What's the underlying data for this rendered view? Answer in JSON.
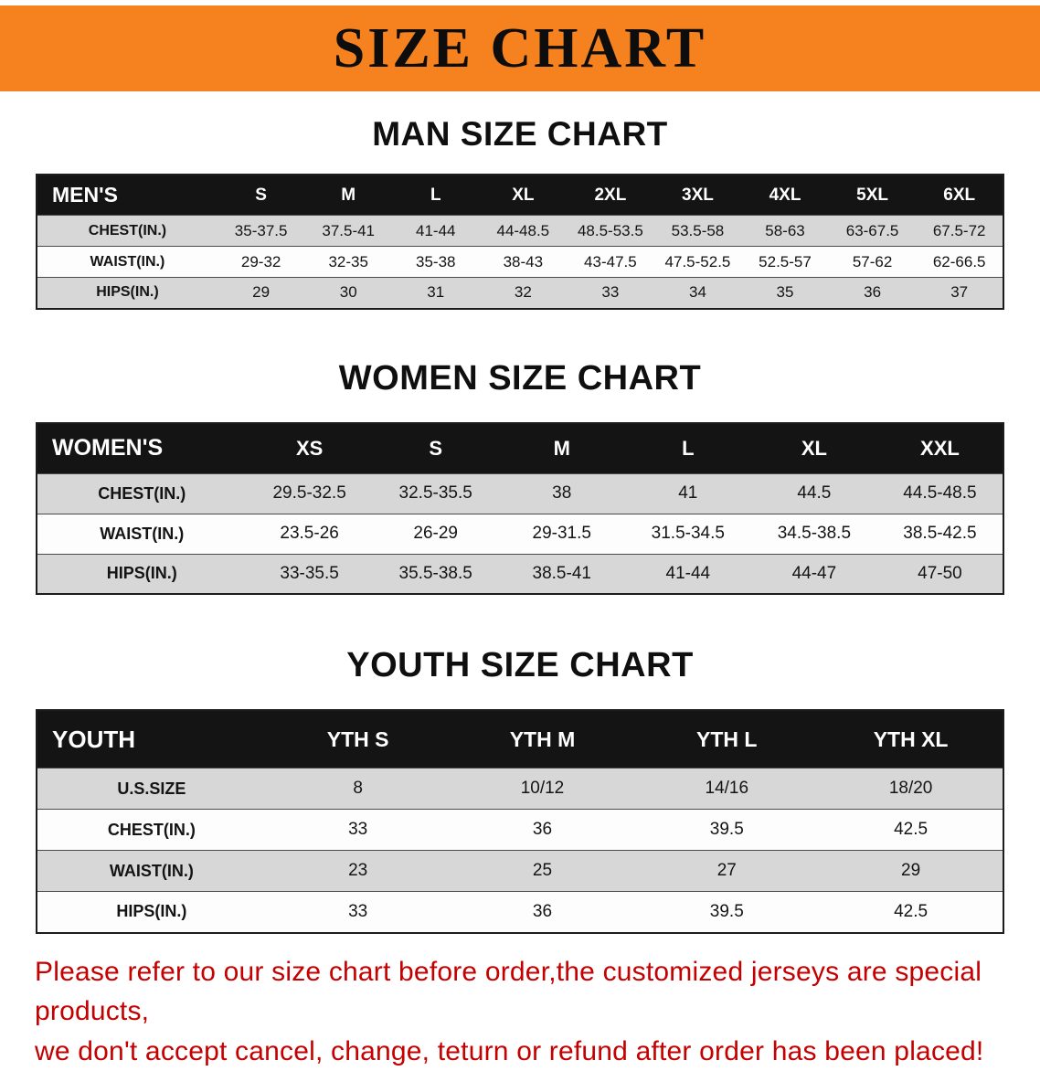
{
  "banner": {
    "title": "SIZE CHART",
    "bg": "#f5821f"
  },
  "sections": {
    "men": {
      "heading": "MAN SIZE CHART",
      "table": {
        "header": [
          "MEN'S",
          "S",
          "M",
          "L",
          "XL",
          "2XL",
          "3XL",
          "4XL",
          "5XL",
          "6XL"
        ],
        "rows": [
          [
            "CHEST(IN.)",
            "35-37.5",
            "37.5-41",
            "41-44",
            "44-48.5",
            "48.5-53.5",
            "53.5-58",
            "58-63",
            "63-67.5",
            "67.5-72"
          ],
          [
            "WAIST(IN.)",
            "29-32",
            "32-35",
            "35-38",
            "38-43",
            "43-47.5",
            "47.5-52.5",
            "52.5-57",
            "57-62",
            "62-66.5"
          ],
          [
            "HIPS(IN.)",
            "29",
            "30",
            "31",
            "32",
            "33",
            "34",
            "35",
            "36",
            "37"
          ]
        ]
      }
    },
    "women": {
      "heading": "WOMEN SIZE CHART",
      "table": {
        "header": [
          "WOMEN'S",
          "XS",
          "S",
          "M",
          "L",
          "XL",
          "XXL"
        ],
        "rows": [
          [
            "CHEST(IN.)",
            "29.5-32.5",
            "32.5-35.5",
            "38",
            "41",
            "44.5",
            "44.5-48.5"
          ],
          [
            "WAIST(IN.)",
            "23.5-26",
            "26-29",
            "29-31.5",
            "31.5-34.5",
            "34.5-38.5",
            "38.5-42.5"
          ],
          [
            "HIPS(IN.)",
            "33-35.5",
            "35.5-38.5",
            "38.5-41",
            "41-44",
            "44-47",
            "47-50"
          ]
        ]
      }
    },
    "youth": {
      "heading": "YOUTH SIZE CHART",
      "table": {
        "header": [
          "YOUTH",
          "YTH S",
          "YTH M",
          "YTH L",
          "YTH XL"
        ],
        "rows": [
          [
            "U.S.SIZE",
            "8",
            "10/12",
            "14/16",
            "18/20"
          ],
          [
            "CHEST(IN.)",
            "33",
            "36",
            "39.5",
            "42.5"
          ],
          [
            "WAIST(IN.)",
            "23",
            "25",
            "27",
            "29"
          ],
          [
            "HIPS(IN.)",
            "33",
            "36",
            "39.5",
            "42.5"
          ]
        ]
      }
    }
  },
  "disclaimer": {
    "line1": "Please refer to our size chart before order,the customized jerseys are special products,",
    "line2": "we don't accept cancel, change, teturn or refund after order has been placed!",
    "color": "#c40000"
  }
}
